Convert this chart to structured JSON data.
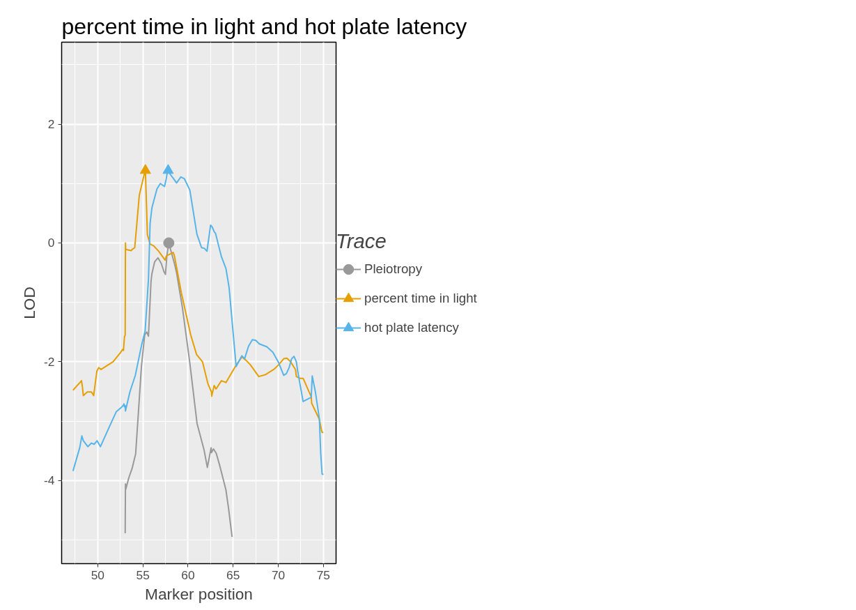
{
  "chart_data": {
    "type": "line",
    "title": "percent time in light and hot plate latency",
    "xlabel": "Marker position",
    "ylabel": "LOD",
    "legend_title": "Trace",
    "xlim": [
      46.0,
      76.4
    ],
    "ylim": [
      -5.4,
      3.38
    ],
    "xticks": [
      {
        "value": 47.5,
        "label": null
      },
      50,
      {
        "value": 52.5,
        "label": null
      },
      55,
      {
        "value": 57.5,
        "label": null
      },
      60,
      {
        "value": 62.5,
        "label": null
      },
      65,
      {
        "value": 67.5,
        "label": null
      },
      70,
      {
        "value": 72.5,
        "label": null
      },
      75
    ],
    "yticks": [
      {
        "value": -5,
        "label": null
      },
      -4,
      {
        "value": -3,
        "label": null
      },
      -2,
      {
        "value": -1,
        "label": null
      },
      0,
      {
        "value": 1,
        "label": null
      },
      2,
      {
        "value": 3,
        "label": null
      }
    ],
    "grid": true,
    "legend": "right",
    "line_style": "solid",
    "series": [
      {
        "name": "Pleiotropy",
        "color": "#999999",
        "x": [
          53.04,
          53.07,
          53.1,
          53.45,
          53.8,
          54.2,
          54.84,
          55.2,
          55.43,
          55.62,
          55.9,
          56.0,
          56.3,
          56.67,
          57.05,
          57.35,
          57.5,
          57.65,
          57.87,
          58.5,
          58.73,
          59.37,
          60.2,
          61.0,
          61.77,
          62.14,
          62.56,
          62.6,
          62.82,
          63.12,
          63.46,
          63.7,
          64.2,
          64.5,
          64.88
        ],
        "values": [
          -4.89,
          -4.06,
          -4.15,
          -3.95,
          -3.8,
          -3.55,
          -2.08,
          -1.55,
          -1.5,
          -1.57,
          -0.65,
          -0.52,
          -0.32,
          -0.25,
          -0.35,
          -0.49,
          -0.53,
          -0.23,
          0.0,
          -0.35,
          -0.5,
          -1.08,
          -2.02,
          -3.04,
          -3.48,
          -3.78,
          -3.45,
          -3.53,
          -3.47,
          -3.54,
          -3.72,
          -3.86,
          -4.16,
          -4.48,
          -4.95
        ]
      },
      {
        "name": "percent time in light",
        "color": "#e69f00",
        "x": [
          47.26,
          48.2,
          48.3,
          48.4,
          48.84,
          49.3,
          49.55,
          49.9,
          50.1,
          50.37,
          51.7,
          52.5,
          52.77,
          52.85,
          52.96,
          53.04,
          53.07,
          53.1,
          53.7,
          53.8,
          54.1,
          54.6,
          55.17,
          55.28,
          55.5,
          55.8,
          56.2,
          56.75,
          57.46,
          57.6,
          58.36,
          58.5,
          59.26,
          60.3,
          60.95,
          61.6,
          62.2,
          62.6,
          62.62,
          62.9,
          63.1,
          63.7,
          64.2,
          65.37,
          65.97,
          66.45,
          66.9,
          67.84,
          68.55,
          69.5,
          70.05,
          70.6,
          70.95,
          71.36,
          71.9,
          72.0,
          72.4,
          72.75,
          73.65,
          73.7,
          74.55,
          74.74,
          74.85,
          75.0
        ],
        "values": [
          -2.48,
          -2.32,
          -2.42,
          -2.57,
          -2.51,
          -2.51,
          -2.57,
          -2.16,
          -2.1,
          -2.13,
          -2.0,
          -1.85,
          -1.79,
          -1.81,
          -1.58,
          -1.55,
          0.0,
          -0.11,
          -0.13,
          -0.11,
          -0.08,
          0.8,
          1.17,
          1.22,
          0.14,
          -0.02,
          -0.05,
          -0.14,
          -0.29,
          -0.22,
          -0.16,
          -0.22,
          -0.84,
          -1.55,
          -1.88,
          -2.0,
          -2.37,
          -2.51,
          -2.58,
          -2.4,
          -2.46,
          -2.32,
          -2.35,
          -2.05,
          -1.92,
          -1.98,
          -2.05,
          -2.25,
          -2.22,
          -2.13,
          -2.05,
          -1.95,
          -1.94,
          -2.0,
          -2.13,
          -2.25,
          -2.28,
          -2.28,
          -2.59,
          -2.7,
          -2.97,
          -3.12,
          -3.19,
          -3.19
        ]
      },
      {
        "name": "hot plate latency",
        "color": "#56b4e9",
        "x": [
          47.26,
          48.0,
          48.24,
          48.4,
          48.9,
          49.3,
          49.6,
          49.93,
          50.3,
          51.27,
          52.06,
          52.6,
          52.8,
          52.9,
          52.96,
          53.04,
          53.07,
          53.56,
          54.16,
          54.87,
          55.25,
          55.62,
          55.8,
          56.0,
          56.07,
          56.56,
          56.93,
          57.3,
          57.4,
          57.6,
          57.68,
          57.8,
          58.06,
          58.5,
          58.73,
          59.2,
          59.6,
          60.2,
          60.98,
          61.5,
          61.8,
          62.1,
          62.5,
          62.67,
          62.9,
          63.05,
          63.46,
          63.7,
          64.2,
          64.55,
          65.33,
          65.97,
          66.27,
          66.7,
          67.13,
          67.5,
          67.9,
          68.74,
          69.4,
          70.05,
          70.6,
          70.9,
          71.2,
          71.48,
          71.74,
          72.0,
          72.15,
          72.75,
          73.65,
          73.76,
          74.1,
          74.55,
          74.7,
          74.85,
          75.0
        ],
        "values": [
          -3.84,
          -3.45,
          -3.25,
          -3.33,
          -3.43,
          -3.37,
          -3.39,
          -3.33,
          -3.43,
          -3.1,
          -2.84,
          -2.77,
          -2.74,
          -2.71,
          -2.76,
          -2.74,
          -2.83,
          -2.51,
          -2.23,
          -1.71,
          -1.48,
          -0.61,
          0.33,
          0.59,
          0.63,
          0.91,
          1.0,
          0.96,
          0.95,
          1.09,
          1.17,
          1.22,
          1.15,
          1.06,
          1.01,
          1.11,
          1.08,
          0.89,
          0.15,
          -0.08,
          -0.09,
          -0.14,
          0.3,
          0.27,
          0.19,
          0.16,
          -0.09,
          -0.23,
          -0.43,
          -0.75,
          -2.08,
          -1.9,
          -1.95,
          -1.74,
          -1.63,
          -1.64,
          -1.7,
          -1.75,
          -1.84,
          -2.02,
          -2.23,
          -2.2,
          -2.1,
          -1.95,
          -1.91,
          -2.0,
          -2.16,
          -2.67,
          -2.6,
          -2.24,
          -2.5,
          -2.96,
          -3.54,
          -3.89,
          -3.9
        ]
      },
      {
        "type": "scatter",
        "marker": "circle",
        "color": "#999999",
        "x": [
          57.87
        ],
        "values": [
          0.0
        ]
      },
      {
        "type": "scatter",
        "marker": "triangle",
        "color": "#e69f00",
        "x": [
          55.28
        ],
        "values": [
          1.22
        ]
      },
      {
        "type": "scatter",
        "marker": "triangle",
        "color": "#56b4e9",
        "x": [
          57.8
        ],
        "values": [
          1.22
        ]
      }
    ]
  }
}
